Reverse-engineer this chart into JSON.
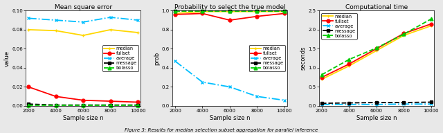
{
  "x": [
    2000,
    4000,
    6000,
    8000,
    10000
  ],
  "panel1": {
    "title": "Mean square error",
    "ylabel": "value",
    "xlabel": "Sample size n",
    "ylim": [
      0.0,
      0.1
    ],
    "yticks": [
      0.0,
      0.02,
      0.04,
      0.06,
      0.08,
      0.1
    ],
    "yticklabels": [
      "0.00",
      "0.02",
      "0.04",
      "0.06",
      "0.08",
      "0.10"
    ],
    "legend_loc": "center right",
    "series": {
      "median": [
        0.08,
        0.079,
        0.074,
        0.08,
        0.077
      ],
      "fullset": [
        0.02,
        0.01,
        0.006,
        0.005,
        0.004
      ],
      "average": [
        0.092,
        0.09,
        0.088,
        0.093,
        0.09
      ],
      "message": [
        0.002,
        0.001,
        0.001,
        0.001,
        0.001
      ],
      "bolasso": [
        0.001,
        0.001,
        0.001,
        0.001,
        0.001
      ]
    }
  },
  "panel2": {
    "title": "Probability to select the true model",
    "ylabel": "prob",
    "xlabel": "Sample size n",
    "ylim": [
      0.0,
      1.0
    ],
    "yticks": [
      0.0,
      0.2,
      0.4,
      0.6,
      0.8,
      1.0
    ],
    "yticklabels": [
      "0.0",
      "0.2",
      "0.4",
      "0.6",
      "0.8",
      "1.0"
    ],
    "legend_loc": "center right",
    "series": {
      "median": [
        0.97,
        0.99,
        0.99,
        0.99,
        0.99
      ],
      "fullset": [
        0.96,
        0.97,
        0.9,
        0.94,
        0.97
      ],
      "average": [
        0.47,
        0.25,
        0.2,
        0.1,
        0.06
      ],
      "message": [
        0.995,
        0.995,
        0.995,
        0.995,
        0.995
      ],
      "bolasso": [
        0.998,
        0.998,
        0.998,
        0.998,
        0.998
      ]
    }
  },
  "panel3": {
    "title": "Computational time",
    "ylabel": "seconds",
    "xlabel": "Sample size n",
    "ylim": [
      0.0,
      2.5
    ],
    "yticks": [
      0.0,
      0.5,
      1.0,
      1.5,
      2.0,
      2.5
    ],
    "yticklabels": [
      "0.0",
      "0.5",
      "1.0",
      "1.5",
      "2.0",
      "2.5"
    ],
    "legend_loc": "upper left",
    "series": {
      "median": [
        0.7,
        1.05,
        1.45,
        1.85,
        2.1
      ],
      "fullset": [
        0.75,
        1.1,
        1.5,
        1.9,
        2.15
      ],
      "average": [
        0.04,
        0.04,
        0.04,
        0.05,
        0.05
      ],
      "message": [
        0.07,
        0.08,
        0.09,
        0.09,
        0.1
      ],
      "bolasso": [
        0.82,
        1.22,
        1.52,
        1.88,
        2.28
      ]
    }
  },
  "colors": {
    "median": "#FFD700",
    "fullset": "#FF0000",
    "average": "#00BFFF",
    "message": "#000000",
    "bolasso": "#00CC00"
  },
  "markers": {
    "median": "+",
    "fullset": "o",
    "average": "x",
    "message": "s",
    "bolasso": "^"
  },
  "linestyles": {
    "median": "-",
    "fullset": "-",
    "average": "-.",
    "message": "--",
    "bolasso": "--"
  },
  "series_names": [
    "median",
    "fullset",
    "average",
    "message",
    "bolasso"
  ],
  "caption": "Figure 3: Results for median selection subset aggregation for parallel inference",
  "fig_bgcolor": "#E8E8E8"
}
